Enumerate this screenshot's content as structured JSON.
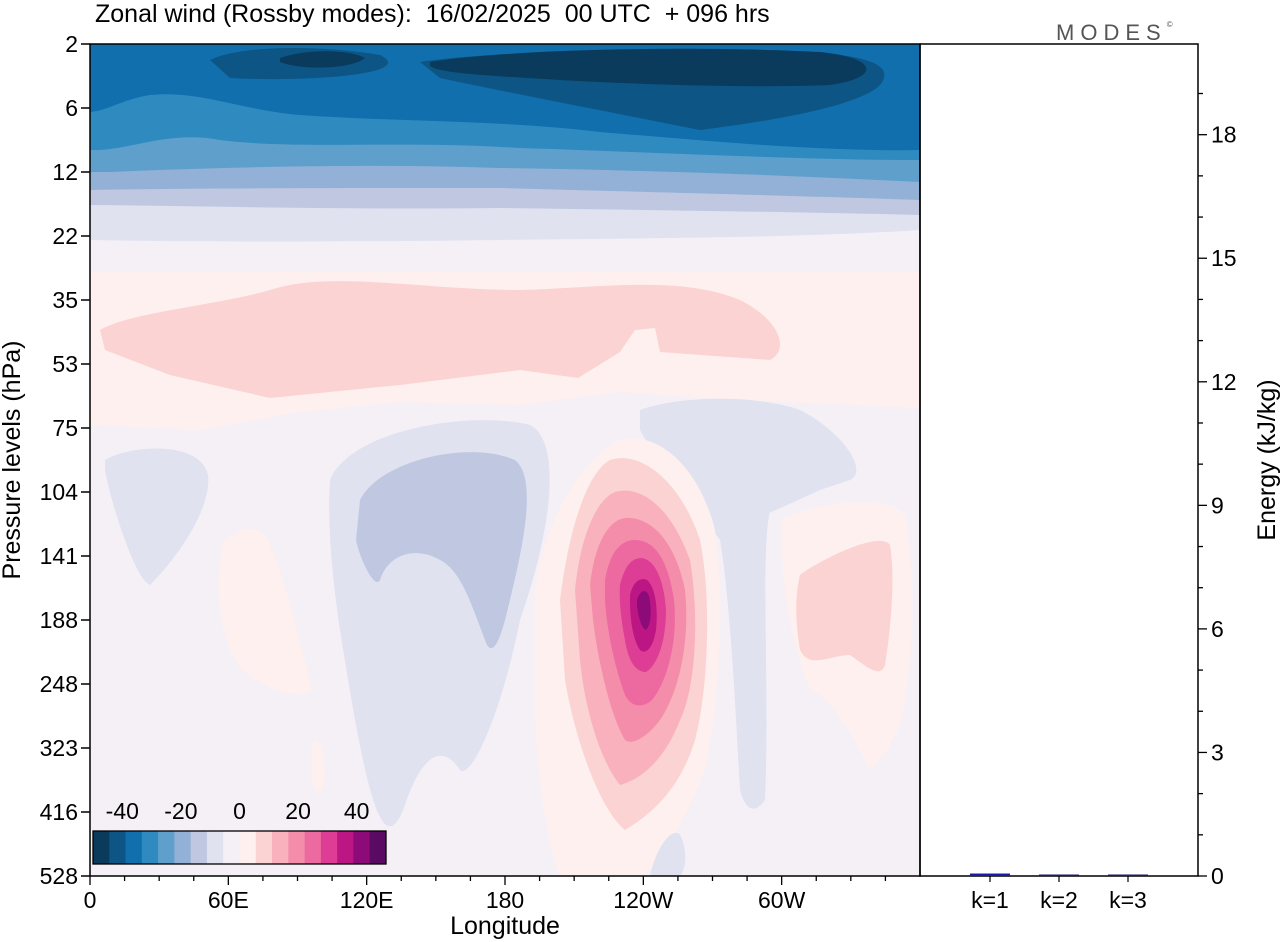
{
  "title": "Zonal wind (Rossby modes):  16/02/2025  00 UTC  + 096 hrs",
  "logo": {
    "text": "MODES",
    "mark": "©"
  },
  "chart_data": [
    {
      "type": "heatmap",
      "title": "Zonal wind (Rossby modes):  16/02/2025  00 UTC  + 096 hrs",
      "xlabel": "Longitude",
      "ylabel": "Pressure levels (hPa)",
      "x_ticks": [
        "0",
        "60E",
        "120E",
        "180",
        "120W",
        "60W"
      ],
      "x_tick_degrees": [
        0,
        60,
        120,
        180,
        240,
        300
      ],
      "xlim": [
        0,
        360
      ],
      "y_ticks": [
        "2",
        "6",
        "12",
        "22",
        "35",
        "53",
        "75",
        "104",
        "141",
        "188",
        "248",
        "323",
        "416",
        "528"
      ],
      "y_scale": "pressure levels (equal spacing per level)",
      "colorbar": {
        "ticks": [
          "-40",
          "-20",
          "0",
          "20",
          "40"
        ],
        "range": [
          -50,
          50
        ],
        "step": 5,
        "colors": [
          "#0a3a5c",
          "#0c5585",
          "#106fac",
          "#2f8ac0",
          "#5f9fcb",
          "#93b1d6",
          "#c0c8e1",
          "#e0e2f0",
          "#f5f0f6",
          "#fdf0ef",
          "#fbd3d3",
          "#f9b1bd",
          "#f48daa",
          "#ec6aa0",
          "#dd3d94",
          "#bb1684",
          "#8c0b78",
          "#5a0a63"
        ]
      },
      "features": [
        {
          "label": "easterly band near top (2-12 hPa)",
          "min_value": -45
        },
        {
          "label": "westerly core near 120W, ~188 hPa",
          "max_value": 45
        },
        {
          "label": "weak westerly layer 35-53 hPa",
          "max_value": 5
        },
        {
          "label": "weak easterly cells 75-248 hPa near 15E, 150E, 90W",
          "min_value": -7
        }
      ]
    },
    {
      "type": "bar",
      "categories": [
        "k=1",
        "k=2",
        "k=3"
      ],
      "values": [
        0.06,
        0.03,
        0.03
      ],
      "ylabel": "Energy (kJ/kg)",
      "ylim": [
        0,
        20
      ],
      "y_ticks": [
        0,
        3,
        6,
        9,
        12,
        15,
        18
      ],
      "colors": [
        "#1a1aa8",
        "#1a1a6a",
        "#1a1a6a"
      ]
    }
  ]
}
